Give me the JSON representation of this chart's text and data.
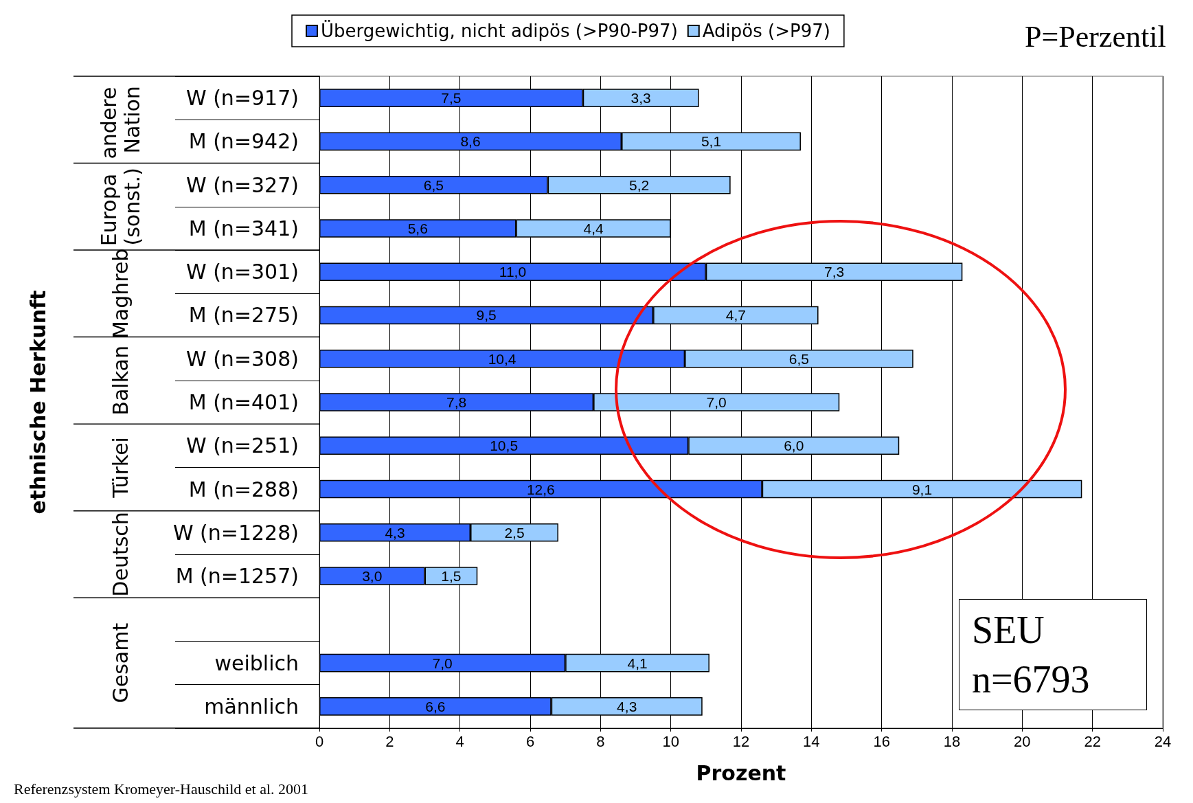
{
  "chart_data": {
    "type": "bar",
    "orientation": "horizontal",
    "stacked": true,
    "xlabel": "Prozent",
    "categories": [
      "W (n=917)",
      "M (n=942)",
      "W (n=327)",
      "M (n=341)",
      "W (n=301)",
      "M (n=275)",
      "W (n=308)",
      "M (n=401)",
      "W (n=251)",
      "M (n=288)",
      "W (n=1228)",
      "M (n=1257)",
      null,
      "weiblich",
      "männlich"
    ],
    "series": [
      {
        "name": "Übergewichtig, nicht adipös (>P90-P97)",
        "color": "#3366ff",
        "values": [
          7.5,
          8.6,
          6.5,
          5.6,
          11.0,
          9.5,
          10.4,
          7.8,
          10.5,
          12.6,
          4.3,
          3.0,
          null,
          7.0,
          6.6
        ],
        "value_labels": [
          "7,5",
          "8,6",
          "6,5",
          "5,6",
          "11,0",
          "9,5",
          "10,4",
          "7,8",
          "10,5",
          "12,6",
          "4,3",
          "3,0",
          null,
          "7,0",
          "6,6"
        ]
      },
      {
        "name": "Adipös (>P97)",
        "color": "#99ccff",
        "values": [
          3.3,
          5.1,
          5.2,
          4.4,
          7.3,
          4.7,
          6.5,
          7.0,
          6.0,
          9.1,
          2.5,
          1.5,
          null,
          4.1,
          4.3
        ],
        "value_labels": [
          "3,3",
          "5,1",
          "5,2",
          "4,4",
          "7,3",
          "4,7",
          "6,5",
          "7,0",
          "6,0",
          "9,1",
          "2,5",
          "1,5",
          null,
          "4,1",
          "4,3"
        ]
      }
    ],
    "xlim": [
      0,
      24
    ],
    "xticks": [
      0,
      2,
      4,
      6,
      8,
      10,
      12,
      14,
      16,
      18,
      20,
      22,
      24
    ],
    "grid": "x",
    "legend": "top",
    "annotations": [
      "andere Nation",
      "Europa (sonst.)",
      "Maghreb",
      "Balkan",
      "Türkei",
      "Deutsch",
      "Gesamt",
      "P=Perzentil",
      "SEU",
      "n=6793",
      "Referenzsystem Kromeyer-Hauschild et al. 2001",
      "ethnische Herkunft"
    ]
  }
}
